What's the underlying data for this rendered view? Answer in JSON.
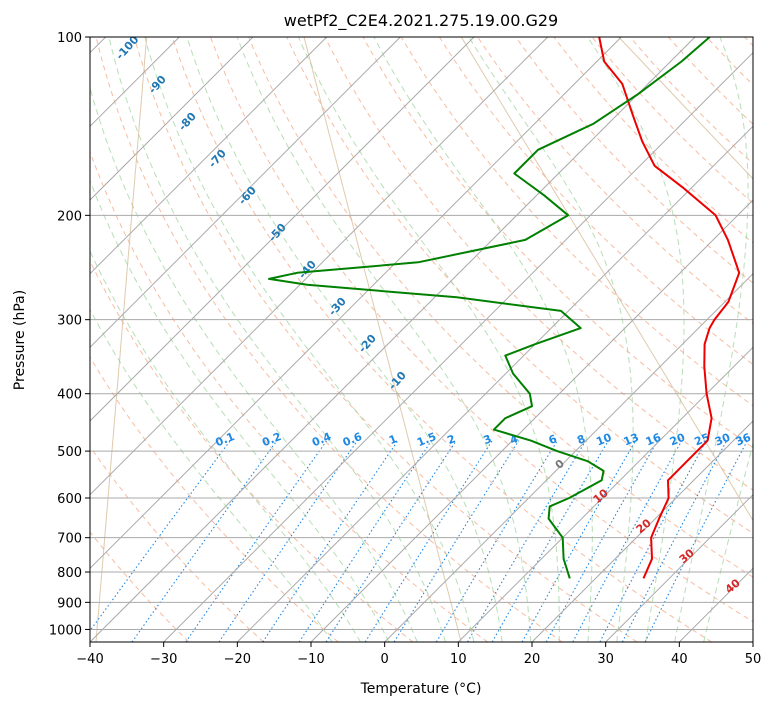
{
  "chart_data": {
    "type": "line",
    "chart_kind": "skew-T log-P diagram",
    "title": "wetPf2_C2E4.2021.275.19.00.G29",
    "xlabel": "Temperature (°C)",
    "ylabel": "Pressure (hPa)",
    "xlim": [
      -40,
      50
    ],
    "ylim": [
      1050,
      100
    ],
    "y_scale": "log",
    "grid": true,
    "x_ticks": [
      -40,
      -30,
      -20,
      -10,
      0,
      10,
      20,
      30,
      40,
      50
    ],
    "y_ticks": [
      100,
      200,
      300,
      400,
      500,
      600,
      700,
      800,
      900,
      1000
    ],
    "colors": {
      "temperature": "#ee0000",
      "dewpoint": "#008000",
      "isotherm": "#aaaaaa",
      "dry_adiabat": "#f4a582",
      "moist_adiabat": "#9fd39f",
      "mixing_ratio": "#1e88e5",
      "theta_e_label": "#1f77b4",
      "outer_curve": "#d2b48c",
      "zero_label": "#777777",
      "warm_label": "#d62728"
    },
    "series": [
      {
        "role": "temperature",
        "points": [
          {
            "p": 820,
            "t": 26.5
          },
          {
            "p": 760,
            "t": 25.0
          },
          {
            "p": 700,
            "t": 22.0
          },
          {
            "p": 650,
            "t": 20.5
          },
          {
            "p": 600,
            "t": 19.0
          },
          {
            "p": 560,
            "t": 16.5
          },
          {
            "p": 520,
            "t": 16.5
          },
          {
            "p": 480,
            "t": 16.5
          },
          {
            "p": 440,
            "t": 14.0
          },
          {
            "p": 400,
            "t": 10.0
          },
          {
            "p": 360,
            "t": 6.0
          },
          {
            "p": 330,
            "t": 3.0
          },
          {
            "p": 310,
            "t": 1.5
          },
          {
            "p": 300,
            "t": 1.0
          },
          {
            "p": 280,
            "t": 0.5
          },
          {
            "p": 250,
            "t": -2.0
          },
          {
            "p": 220,
            "t": -8.0
          },
          {
            "p": 200,
            "t": -13.0
          },
          {
            "p": 180,
            "t": -21.0
          },
          {
            "p": 165,
            "t": -28.0
          },
          {
            "p": 150,
            "t": -33.0
          },
          {
            "p": 135,
            "t": -38.0
          },
          {
            "p": 120,
            "t": -43.5
          },
          {
            "p": 110,
            "t": -49.0
          },
          {
            "p": 100,
            "t": -53.0
          }
        ]
      },
      {
        "role": "dewpoint",
        "points": [
          {
            "p": 820,
            "t": 16.5
          },
          {
            "p": 760,
            "t": 13.0
          },
          {
            "p": 700,
            "t": 10.0
          },
          {
            "p": 650,
            "t": 5.5
          },
          {
            "p": 620,
            "t": 4.0
          },
          {
            "p": 600,
            "t": 5.5
          },
          {
            "p": 560,
            "t": 7.5
          },
          {
            "p": 540,
            "t": 6.5
          },
          {
            "p": 520,
            "t": 3.0
          },
          {
            "p": 500,
            "t": -2.5
          },
          {
            "p": 480,
            "t": -7.5
          },
          {
            "p": 460,
            "t": -14.0
          },
          {
            "p": 440,
            "t": -14.0
          },
          {
            "p": 420,
            "t": -12.0
          },
          {
            "p": 400,
            "t": -14.0
          },
          {
            "p": 370,
            "t": -19.0
          },
          {
            "p": 345,
            "t": -22.5
          },
          {
            "p": 330,
            "t": -20.0
          },
          {
            "p": 310,
            "t": -16.0
          },
          {
            "p": 290,
            "t": -21.0
          },
          {
            "p": 275,
            "t": -37.0
          },
          {
            "p": 262,
            "t": -59.0
          },
          {
            "p": 256,
            "t": -65.0
          },
          {
            "p": 250,
            "t": -62.0
          },
          {
            "p": 240,
            "t": -47.0
          },
          {
            "p": 220,
            "t": -35.5
          },
          {
            "p": 200,
            "t": -33.0
          },
          {
            "p": 185,
            "t": -39.0
          },
          {
            "p": 170,
            "t": -46.0
          },
          {
            "p": 155,
            "t": -46.0
          },
          {
            "p": 140,
            "t": -42.0
          },
          {
            "p": 125,
            "t": -40.0
          },
          {
            "p": 110,
            "t": -38.5
          },
          {
            "p": 100,
            "t": -38.0
          }
        ]
      }
    ],
    "annotations": {
      "mixing_ratio_labels": [
        "0.1",
        "0.2",
        "0.4",
        "0.6",
        "1",
        "1.5",
        "2",
        "3",
        "4",
        "6",
        "8",
        "10",
        "13",
        "16",
        "20",
        "25",
        "30",
        "36"
      ],
      "moist_adiabat_labels": [
        "-100",
        "-90",
        "-80",
        "-70",
        "-60",
        "-50",
        "-40",
        "-30",
        "-20",
        "-10"
      ],
      "zero_label": "0",
      "warm_labels": [
        "10",
        "20",
        "30",
        "40"
      ]
    }
  }
}
